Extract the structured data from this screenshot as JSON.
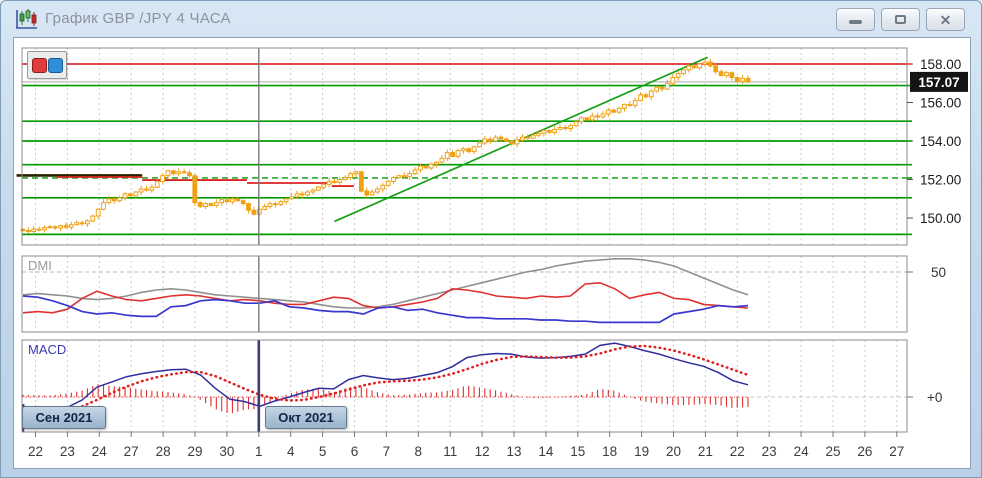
{
  "window": {
    "title": "График GBP /JPY  4 ЧАСА",
    "buttons": {
      "minimize": "minimize",
      "maximize": "maximize",
      "close": "close"
    }
  },
  "panes": {
    "dmi_label": "DMI",
    "macd_label": "MACD"
  },
  "badges": {
    "sep": "Сен 2021",
    "okt": "Окт 2021"
  },
  "axes": {
    "x_labels": [
      "22",
      "23",
      "24",
      "27",
      "28",
      "29",
      "30",
      "1",
      "4",
      "5",
      "6",
      "7",
      "8",
      "11",
      "12",
      "13",
      "14",
      "15",
      "18",
      "19",
      "20",
      "21",
      "22",
      "23",
      "24",
      "25",
      "26",
      "27"
    ],
    "month_sep_index": 7,
    "price_labels": [
      {
        "text": "158.00",
        "price": 158.0
      },
      {
        "text": "156.00",
        "price": 156.0
      },
      {
        "text": "154.00",
        "price": 154.0
      },
      {
        "text": "152.00",
        "price": 152.0
      },
      {
        "text": "150.00",
        "price": 150.0
      }
    ],
    "current_price": "157.07",
    "current_price_value": 157.07,
    "dmi_level_label": "50",
    "macd_level_label": "+0"
  },
  "colors": {
    "candle": "#efa116",
    "green_level": "#009b00",
    "red_level": "#e03131",
    "trend": "#17a017",
    "grid": "#cccccc",
    "pane_border": "#8c8c8c",
    "adx": "#909090",
    "plus_di": "#e03030",
    "minus_di": "#3838cf",
    "macd_line": "#2e2e9e",
    "signal_line": "#e02020",
    "hist": "#e03030",
    "current_badge_bg": "#141414",
    "month_line": "#7a7a7a",
    "macd_month_line": "#3c3c74",
    "stop_black": "#2a2300",
    "stop_red": "#dd2222",
    "price_gray": "#aaaaaa"
  },
  "chart_data": {
    "type": "candlestick_with_indicators",
    "symbol": "GBP/JPY",
    "timeframe": "4H",
    "candles_per_day": 6,
    "visible_price_range": [
      148.6,
      158.8
    ],
    "closes": [
      149.35,
      149.3,
      149.42,
      149.38,
      149.5,
      149.55,
      149.48,
      149.6,
      149.52,
      149.65,
      149.75,
      149.7,
      149.85,
      150.1,
      150.45,
      150.8,
      151.0,
      150.9,
      151.05,
      151.25,
      151.15,
      151.35,
      151.5,
      151.45,
      151.6,
      151.9,
      152.2,
      152.45,
      152.3,
      152.4,
      152.35,
      152.2,
      150.8,
      150.6,
      150.75,
      150.65,
      150.8,
      150.95,
      150.85,
      151.0,
      150.9,
      150.75,
      150.4,
      150.2,
      150.45,
      150.6,
      150.75,
      150.7,
      150.85,
      151.0,
      151.1,
      151.25,
      151.2,
      151.35,
      151.45,
      151.6,
      151.75,
      151.9,
      151.85,
      152.0,
      152.1,
      152.3,
      152.4,
      151.4,
      151.2,
      151.35,
      151.5,
      151.7,
      151.9,
      152.1,
      152.2,
      152.15,
      152.3,
      152.5,
      152.7,
      152.6,
      152.8,
      152.9,
      153.1,
      153.4,
      153.2,
      153.5,
      153.6,
      153.45,
      153.7,
      153.9,
      154.1,
      154.0,
      154.2,
      154.1,
      154.0,
      153.85,
      154.05,
      154.2,
      154.15,
      154.3,
      154.4,
      154.55,
      154.45,
      154.6,
      154.7,
      154.65,
      154.8,
      155.0,
      155.2,
      155.1,
      155.3,
      155.25,
      155.4,
      155.6,
      155.5,
      155.7,
      155.9,
      155.85,
      156.1,
      156.4,
      156.3,
      156.6,
      156.8,
      156.7,
      157.0,
      157.3,
      157.5,
      157.7,
      157.9,
      157.8,
      158.0,
      158.1,
      157.9,
      157.6,
      157.4,
      157.55,
      157.3,
      157.1,
      157.25,
      157.07
    ],
    "h_lines": [
      {
        "price": 158.0,
        "color": "red",
        "style": "solid",
        "width": 1.8
      },
      {
        "price": 157.07,
        "color": "gray",
        "style": "solid",
        "width": 1.0
      },
      {
        "price": 156.88,
        "color": "green",
        "style": "solid",
        "width": 1.7
      },
      {
        "price": 155.03,
        "color": "green",
        "style": "solid",
        "width": 1.7
      },
      {
        "price": 154.0,
        "color": "green",
        "style": "solid",
        "width": 1.7
      },
      {
        "price": 152.77,
        "color": "green",
        "style": "solid",
        "width": 1.7
      },
      {
        "price": 152.08,
        "color": "green",
        "style": "dashed",
        "width": 1.4
      },
      {
        "price": 151.05,
        "color": "green",
        "style": "solid",
        "width": 1.7
      },
      {
        "price": 149.15,
        "color": "green",
        "style": "solid",
        "width": 1.7
      }
    ],
    "trend_line": {
      "from_candle": 58.0,
      "from_price": 149.82,
      "to_candle": 127.5,
      "to_price": 158.35
    },
    "stop_segments": {
      "black": [
        {
          "c1": -1.2,
          "c2": 22.2,
          "price": 152.21
        }
      ],
      "red": [
        {
          "c1": 6.3,
          "c2": 22.2,
          "price": 152.13
        },
        {
          "c1": 22.2,
          "c2": 41.7,
          "price": 151.97
        },
        {
          "c1": 41.7,
          "c2": 57.5,
          "price": 151.82
        },
        {
          "c1": 57.5,
          "c2": 61.6,
          "price": 151.66
        }
      ]
    },
    "dmi": {
      "level": 50,
      "adx": [
        31,
        32,
        31,
        30,
        28,
        27,
        28,
        30,
        33,
        35,
        36,
        35,
        33,
        31,
        30,
        29,
        28,
        27,
        26,
        25,
        23,
        21,
        20,
        20,
        21,
        23,
        26,
        29,
        32,
        35,
        38,
        41,
        44,
        47,
        50,
        52,
        55,
        57,
        59,
        60,
        61,
        61,
        60,
        58,
        55,
        50,
        45,
        40,
        35,
        31
      ],
      "plus_di": [
        16,
        17,
        16,
        19,
        28,
        34,
        30,
        27,
        26,
        28,
        30,
        31,
        30,
        28,
        26,
        27,
        26,
        24,
        23,
        23,
        26,
        29,
        28,
        22,
        20,
        21,
        23,
        25,
        28,
        36,
        35,
        33,
        30,
        29,
        28,
        30,
        29,
        30,
        40,
        41,
        36,
        28,
        31,
        33,
        28,
        27,
        23,
        22,
        21,
        20
      ],
      "minus_di": [
        30,
        29,
        26,
        22,
        17,
        15,
        16,
        14,
        13,
        13,
        21,
        22,
        26,
        27,
        26,
        24,
        24,
        26,
        21,
        20,
        18,
        17,
        17,
        15,
        20,
        21,
        18,
        19,
        16,
        14,
        12,
        12,
        11,
        11,
        11,
        10,
        10,
        9,
        9,
        8,
        8,
        8,
        8,
        8,
        15,
        17,
        19,
        22,
        21,
        22
      ]
    },
    "macd": {
      "macd": [
        -0.16,
        -0.2,
        -0.22,
        -0.18,
        -0.05,
        0.17,
        0.26,
        0.35,
        0.4,
        0.44,
        0.47,
        0.48,
        0.38,
        0.15,
        -0.04,
        -0.08,
        -0.16,
        -0.07,
        0.0,
        0.08,
        0.15,
        0.14,
        0.3,
        0.37,
        0.33,
        0.3,
        0.32,
        0.37,
        0.42,
        0.52,
        0.68,
        0.73,
        0.75,
        0.74,
        0.69,
        0.67,
        0.68,
        0.7,
        0.74,
        0.89,
        0.93,
        0.87,
        0.8,
        0.74,
        0.66,
        0.59,
        0.53,
        0.42,
        0.28,
        0.21
      ],
      "signal": [
        -0.2,
        -0.23,
        -0.25,
        -0.24,
        -0.16,
        -0.05,
        0.07,
        0.18,
        0.27,
        0.34,
        0.39,
        0.43,
        0.43,
        0.36,
        0.25,
        0.14,
        0.04,
        -0.03,
        -0.06,
        -0.05,
        0.0,
        0.06,
        0.13,
        0.2,
        0.25,
        0.27,
        0.28,
        0.3,
        0.34,
        0.4,
        0.48,
        0.57,
        0.64,
        0.69,
        0.7,
        0.69,
        0.68,
        0.68,
        0.7,
        0.75,
        0.82,
        0.87,
        0.88,
        0.85,
        0.8,
        0.73,
        0.65,
        0.56,
        0.47,
        0.38
      ]
    }
  }
}
